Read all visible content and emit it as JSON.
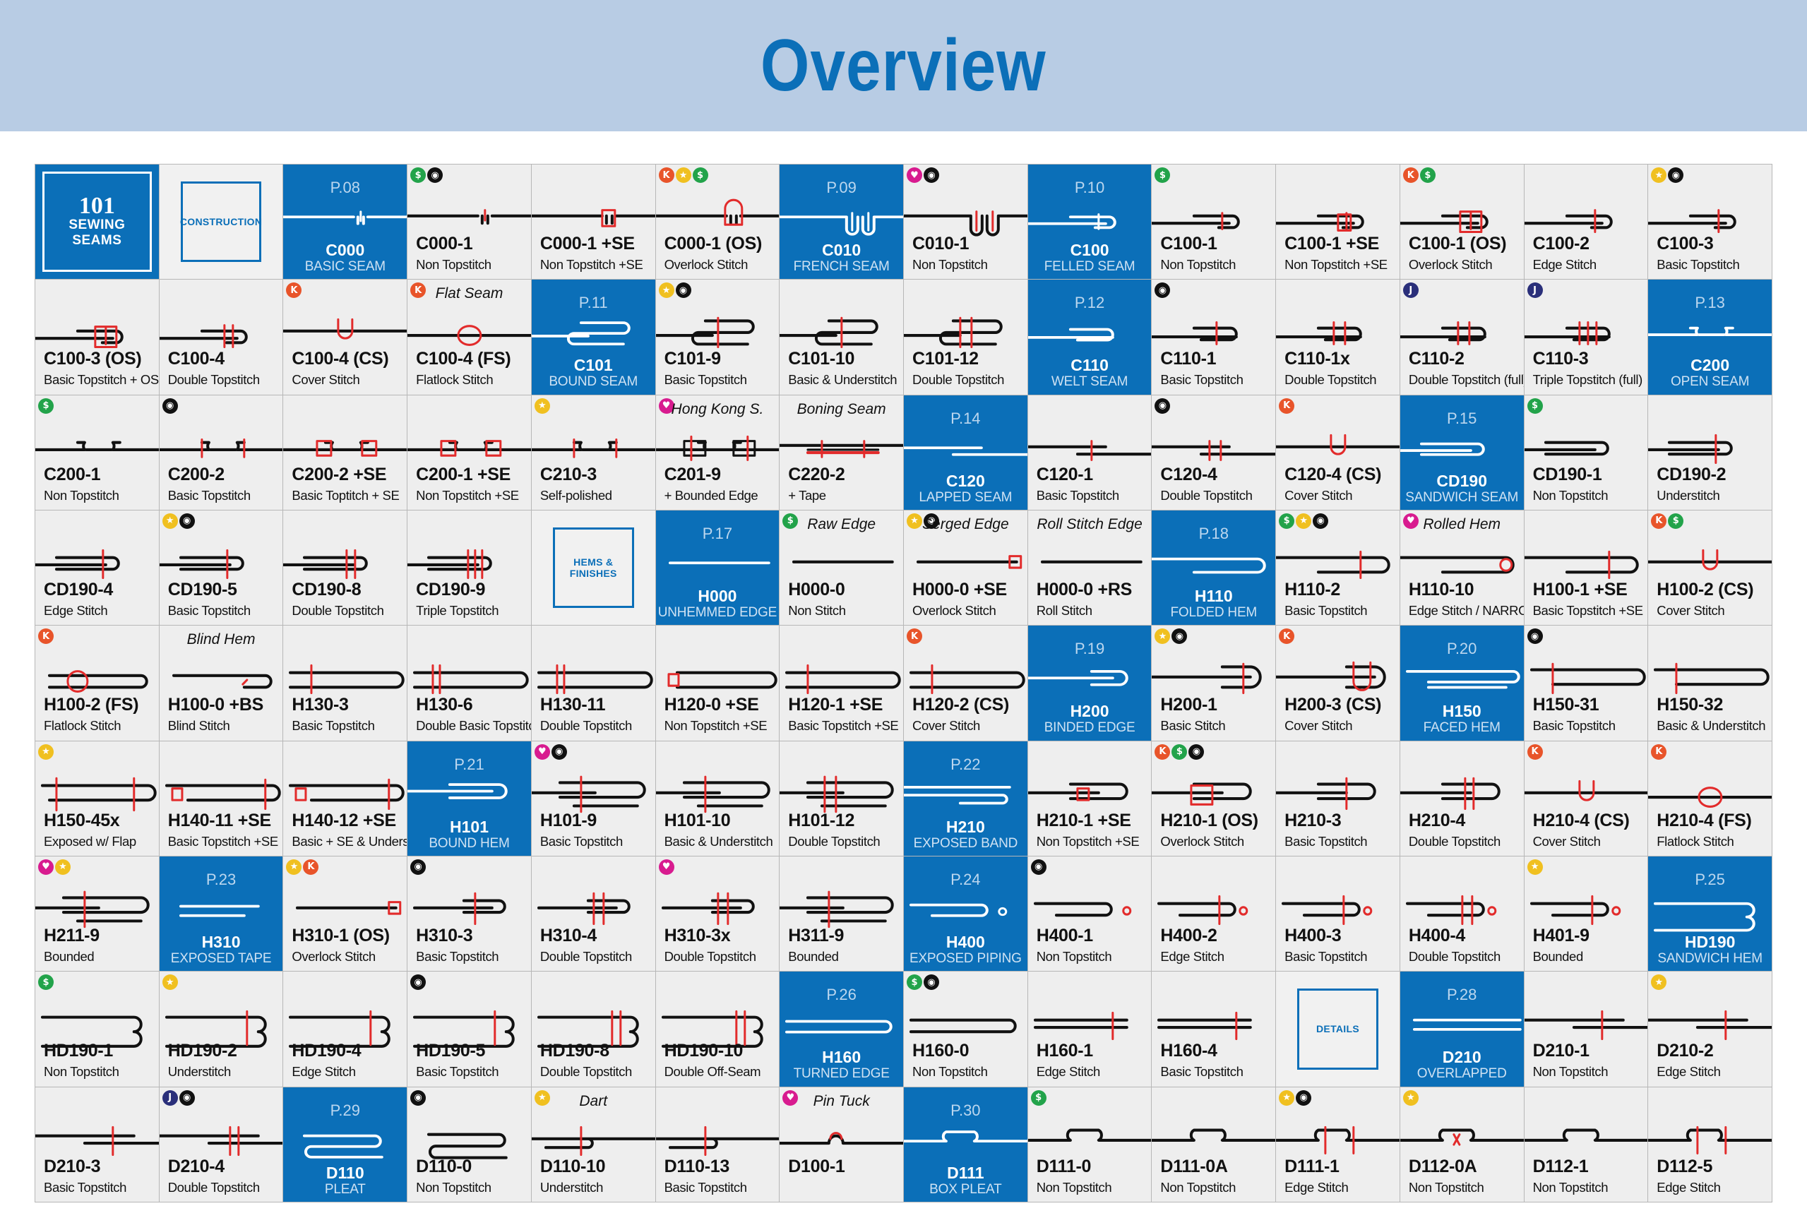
{
  "header": {
    "title": "Overview"
  },
  "logo": {
    "line1": "101",
    "line2": "SEWING",
    "line3": "SEAMS"
  },
  "colors": {
    "banner": "#b8cce4",
    "accent": "#0b6fb8",
    "cell": "#eeeeee",
    "stitch": "#e22b2b",
    "fabric": "#111111"
  },
  "cells": [
    {
      "type": "logo"
    },
    {
      "type": "label",
      "text": "CONSTRUCTION"
    },
    {
      "type": "sec",
      "page": "P.08",
      "code": "C000",
      "sub": "BASIC SEAM",
      "k": "plain"
    },
    {
      "type": "seam",
      "code": "C000-1",
      "desc": "Non Topstitch",
      "badges": [
        "dollar",
        "camera"
      ],
      "k": "plain"
    },
    {
      "type": "seam",
      "code": "C000-1 +SE",
      "desc": "Non Topstitch +SE",
      "k": "plain-se"
    },
    {
      "type": "seam",
      "code": "C000-1 (OS)",
      "desc": "Overlock Stitch",
      "badges": [
        "k",
        "star",
        "dollar"
      ],
      "k": "plain-os"
    },
    {
      "type": "sec",
      "page": "P.09",
      "code": "C010",
      "sub": "FRENCH SEAM",
      "k": "french"
    },
    {
      "type": "seam",
      "code": "C010-1",
      "desc": "Non Topstitch",
      "badges": [
        "heart",
        "camera"
      ],
      "k": "french"
    },
    {
      "type": "sec",
      "page": "P.10",
      "code": "C100",
      "sub": "FELLED SEAM",
      "k": "felled"
    },
    {
      "type": "seam",
      "code": "C100-1",
      "desc": "Non Topstitch",
      "badges": [
        "dollar"
      ],
      "k": "felled"
    },
    {
      "type": "seam",
      "code": "C100-1 +SE",
      "desc": "Non Topstitch +SE",
      "k": "felled-se"
    },
    {
      "type": "seam",
      "code": "C100-1 (OS)",
      "desc": "Overlock Stitch",
      "badges": [
        "k",
        "dollar"
      ],
      "k": "felled-os"
    },
    {
      "type": "seam",
      "code": "C100-2",
      "desc": "Edge Stitch",
      "k": "felled-1"
    },
    {
      "type": "seam",
      "code": "C100-3",
      "desc": "Basic Topstitch",
      "badges": [
        "star",
        "camera"
      ],
      "k": "felled-1"
    },
    {
      "type": "seam",
      "code": "C100-3 (OS)",
      "desc": "Basic Topstitch + OS",
      "k": "felled-os"
    },
    {
      "type": "seam",
      "code": "C100-4",
      "desc": "Double Topstitch",
      "k": "felled-2"
    },
    {
      "type": "seam",
      "code": "C100-4 (CS)",
      "desc": "Cover Stitch",
      "badges": [
        "k"
      ],
      "k": "cover"
    },
    {
      "type": "seam",
      "code": "C100-4 (FS)",
      "desc": "Flatlock Stitch",
      "badges": [
        "k"
      ],
      "note": "Flat Seam",
      "k": "flat"
    },
    {
      "type": "sec",
      "page": "P.11",
      "code": "C101",
      "sub": "BOUND SEAM",
      "k": "bound"
    },
    {
      "type": "seam",
      "code": "C101-9",
      "desc": "Basic Topstitch",
      "badges": [
        "star",
        "camera"
      ],
      "k": "bound-1"
    },
    {
      "type": "seam",
      "code": "C101-10",
      "desc": "Basic & Understitch",
      "k": "bound-1"
    },
    {
      "type": "seam",
      "code": "C101-12",
      "desc": "Double Topstitch",
      "k": "bound-2"
    },
    {
      "type": "sec",
      "page": "P.12",
      "code": "C110",
      "sub": "WELT SEAM",
      "k": "welt"
    },
    {
      "type": "seam",
      "code": "C110-1",
      "desc": "Basic Topstitch",
      "badges": [
        "camera"
      ],
      "k": "welt-1"
    },
    {
      "type": "seam",
      "code": "C110-1x",
      "desc": "Double Topstitch",
      "k": "welt-2"
    },
    {
      "type": "seam",
      "code": "C110-2",
      "desc": "Double Topstitch (full)",
      "badges": [
        "j"
      ],
      "k": "welt-2"
    },
    {
      "type": "seam",
      "code": "C110-3",
      "desc": "Triple Topstitch (full)",
      "badges": [
        "j"
      ],
      "k": "welt-3"
    },
    {
      "type": "sec",
      "page": "P.13",
      "code": "C200",
      "sub": "OPEN SEAM",
      "k": "open"
    },
    {
      "type": "seam",
      "code": "C200-1",
      "desc": "Non Topstitch",
      "badges": [
        "dollar"
      ],
      "k": "open"
    },
    {
      "type": "seam",
      "code": "C200-2",
      "desc": "Basic Topstitch",
      "badges": [
        "camera"
      ],
      "k": "open-2"
    },
    {
      "type": "seam",
      "code": "C200-2 +SE",
      "desc": "Basic Toptitch + SE",
      "k": "open-se"
    },
    {
      "type": "seam",
      "code": "C200-1 +SE",
      "desc": "Non Topstitch +SE",
      "k": "open-se"
    },
    {
      "type": "seam",
      "code": "C210-3",
      "desc": "Self-polished",
      "badges": [
        "star"
      ],
      "k": "open-2"
    },
    {
      "type": "seam",
      "code": "C201-9",
      "desc": "+ Bounded Edge",
      "badges": [
        "heart"
      ],
      "note": "Hong Kong S.",
      "k": "open-bound"
    },
    {
      "type": "seam",
      "code": "C220-2",
      "desc": "+ Tape",
      "note": "Boning Seam",
      "k": "tape"
    },
    {
      "type": "sec",
      "page": "P.14",
      "code": "C120",
      "sub": "LAPPED SEAM",
      "k": "lapped"
    },
    {
      "type": "seam",
      "code": "C120-1",
      "desc": "Basic Topstitch",
      "k": "lapped-1"
    },
    {
      "type": "seam",
      "code": "C120-4",
      "desc": "Double Topstitch",
      "badges": [
        "camera"
      ],
      "k": "lapped-2"
    },
    {
      "type": "seam",
      "code": "C120-4 (CS)",
      "desc": "Cover Stitch",
      "badges": [
        "k"
      ],
      "k": "cover"
    },
    {
      "type": "sec",
      "page": "P.15",
      "code": "CD190",
      "sub": "SANDWICH SEAM",
      "k": "sandwich"
    },
    {
      "type": "seam",
      "code": "CD190-1",
      "desc": "Non Topstitch",
      "badges": [
        "dollar"
      ],
      "k": "sandwich"
    },
    {
      "type": "seam",
      "code": "CD190-2",
      "desc": "Understitch",
      "k": "sandwich-1"
    },
    {
      "type": "seam",
      "code": "CD190-4",
      "desc": "Edge Stitch",
      "k": "sandwich-1"
    },
    {
      "type": "seam",
      "code": "CD190-5",
      "desc": "Basic Topstitch",
      "badges": [
        "star",
        "camera"
      ],
      "k": "sandwich-1"
    },
    {
      "type": "seam",
      "code": "CD190-8",
      "desc": "Double Topstitch",
      "k": "sandwich-2"
    },
    {
      "type": "seam",
      "code": "CD190-9",
      "desc": "Triple Topstitch",
      "k": "sandwich-3"
    },
    {
      "type": "label",
      "text": "HEMS & FINISHES"
    },
    {
      "type": "sec",
      "page": "P.17",
      "code": "H000",
      "sub": "UNHEMMED EDGE",
      "k": "raw"
    },
    {
      "type": "seam",
      "code": "H000-0",
      "desc": "Non Stitch",
      "badges": [
        "dollar"
      ],
      "note": "Raw Edge",
      "k": "raw"
    },
    {
      "type": "seam",
      "code": "H000-0 +SE",
      "desc": "Overlock Stitch",
      "badges": [
        "star",
        "camera"
      ],
      "note": "Serged Edge",
      "k": "raw-se"
    },
    {
      "type": "seam",
      "code": "H000-0 +RS",
      "desc": "Roll Stitch",
      "note": "Roll Stitch Edge",
      "k": "raw"
    },
    {
      "type": "sec",
      "page": "P.18",
      "code": "H110",
      "sub": "FOLDED HEM",
      "k": "hem"
    },
    {
      "type": "seam",
      "code": "H110-2",
      "desc": "Basic Topstitch",
      "badges": [
        "dollar",
        "star",
        "camera"
      ],
      "k": "hem-1"
    },
    {
      "type": "seam",
      "code": "H110-10",
      "desc": "Edge Stitch / NARROW",
      "badges": [
        "heart"
      ],
      "note": "Rolled Hem",
      "k": "hem-roll"
    },
    {
      "type": "seam",
      "code": "H100-1 +SE",
      "desc": "Basic Topstitch +SE",
      "k": "hem-1"
    },
    {
      "type": "seam",
      "code": "H100-2 (CS)",
      "desc": "Cover Stitch",
      "badges": [
        "k",
        "dollar"
      ],
      "k": "cover"
    },
    {
      "type": "seam",
      "code": "H100-2 (FS)",
      "desc": "Flatlock Stitch",
      "badges": [
        "k"
      ],
      "k": "hem-flat"
    },
    {
      "type": "seam",
      "code": "H100-0 +BS",
      "desc": "Blind Stitch",
      "note": "Blind Hem",
      "k": "hem-blind"
    },
    {
      "type": "seam",
      "code": "H130-3",
      "desc": "Basic Topstitch",
      "k": "hem-long"
    },
    {
      "type": "seam",
      "code": "H130-6",
      "desc": "Double Basic Topstitch",
      "k": "hem-long2"
    },
    {
      "type": "seam",
      "code": "H130-11",
      "desc": "Double Topstitch",
      "k": "hem-long2"
    },
    {
      "type": "seam",
      "code": "H120-0 +SE",
      "desc": "Non Topstitch +SE",
      "k": "hem-long-se"
    },
    {
      "type": "seam",
      "code": "H120-1 +SE",
      "desc": "Basic Topstitch +SE",
      "k": "hem-long"
    },
    {
      "type": "seam",
      "code": "H120-2 (CS)",
      "desc": "Cover Stitch",
      "badges": [
        "k"
      ],
      "k": "hem-long"
    },
    {
      "type": "sec",
      "page": "P.19",
      "code": "H200",
      "sub": "BINDED EDGE",
      "k": "binded"
    },
    {
      "type": "seam",
      "code": "H200-1",
      "desc": "Basic Stitch",
      "badges": [
        "star",
        "camera"
      ],
      "k": "binded-1"
    },
    {
      "type": "seam",
      "code": "H200-3 (CS)",
      "desc": "Cover Stitch",
      "badges": [
        "k"
      ],
      "k": "binded-2"
    },
    {
      "type": "sec",
      "page": "P.20",
      "code": "H150",
      "sub": "FACED HEM",
      "k": "faced"
    },
    {
      "type": "seam",
      "code": "H150-31",
      "desc": "Basic Topstitch",
      "badges": [
        "camera"
      ],
      "k": "faced-1"
    },
    {
      "type": "seam",
      "code": "H150-32",
      "desc": "Basic & Understitch",
      "k": "faced-1"
    },
    {
      "type": "seam",
      "code": "H150-45x",
      "desc": "Exposed w/ Flap",
      "badges": [
        "star"
      ],
      "k": "faced-2"
    },
    {
      "type": "seam",
      "code": "H140-11 +SE",
      "desc": "Basic Topstitch +SE",
      "k": "faced-se"
    },
    {
      "type": "seam",
      "code": "H140-12 +SE",
      "desc": "Basic + SE & Underst.",
      "k": "faced-se"
    },
    {
      "type": "sec",
      "page": "P.21",
      "code": "H101",
      "sub": "BOUND HEM",
      "k": "boundhem"
    },
    {
      "type": "seam",
      "code": "H101-9",
      "desc": "Basic Topstitch",
      "badges": [
        "heart",
        "camera"
      ],
      "k": "boundhem-1"
    },
    {
      "type": "seam",
      "code": "H101-10",
      "desc": "Basic & Understitch",
      "k": "boundhem-1"
    },
    {
      "type": "seam",
      "code": "H101-12",
      "desc": "Double Topstitch",
      "k": "boundhem-2"
    },
    {
      "type": "sec",
      "page": "P.22",
      "code": "H210",
      "sub": "EXPOSED BAND",
      "k": "band"
    },
    {
      "type": "seam",
      "code": "H210-1 +SE",
      "desc": "Non Topstitch +SE",
      "k": "band-se"
    },
    {
      "type": "seam",
      "code": "H210-1 (OS)",
      "desc": "Overlock Stitch",
      "badges": [
        "k",
        "dollar",
        "camera"
      ],
      "k": "band-os"
    },
    {
      "type": "seam",
      "code": "H210-3",
      "desc": "Basic Topstitch",
      "k": "band-1"
    },
    {
      "type": "seam",
      "code": "H210-4",
      "desc": "Double Topstitch",
      "k": "band-2"
    },
    {
      "type": "seam",
      "code": "H210-4 (CS)",
      "desc": "Cover Stitch",
      "badges": [
        "k"
      ],
      "k": "cover"
    },
    {
      "type": "seam",
      "code": "H210-4 (FS)",
      "desc": "Flatlock Stitch",
      "badges": [
        "k"
      ],
      "k": "flat"
    },
    {
      "type": "seam",
      "code": "H211-9",
      "desc": "Bounded",
      "badges": [
        "heart",
        "star"
      ],
      "k": "boundhem-1"
    },
    {
      "type": "sec",
      "page": "P.23",
      "code": "H310",
      "sub": "EXPOSED TAPE",
      "k": "tapehem"
    },
    {
      "type": "seam",
      "code": "H310-1 (OS)",
      "desc": "Overlock Stitch",
      "badges": [
        "star",
        "k"
      ],
      "k": "raw-se"
    },
    {
      "type": "seam",
      "code": "H310-3",
      "desc": "Basic Topstitch",
      "badges": [
        "camera"
      ],
      "k": "tapehem-1"
    },
    {
      "type": "seam",
      "code": "H310-4",
      "desc": "Double Topstitch",
      "k": "tapehem-2"
    },
    {
      "type": "seam",
      "code": "H310-3x",
      "desc": "Double Topstitch",
      "badges": [
        "heart"
      ],
      "k": "tapehem-2"
    },
    {
      "type": "seam",
      "code": "H311-9",
      "desc": "Bounded",
      "k": "boundhem-1"
    },
    {
      "type": "sec",
      "page": "P.24",
      "code": "H400",
      "sub": "EXPOSED PIPING",
      "k": "piping"
    },
    {
      "type": "seam",
      "code": "H400-1",
      "desc": "Non Topstitch",
      "badges": [
        "camera"
      ],
      "k": "piping"
    },
    {
      "type": "seam",
      "code": "H400-2",
      "desc": "Edge Stitch",
      "k": "piping-1"
    },
    {
      "type": "seam",
      "code": "H400-3",
      "desc": "Basic Topstitch",
      "k": "piping-1"
    },
    {
      "type": "seam",
      "code": "H400-4",
      "desc": "Double Topstitch",
      "k": "piping-2"
    },
    {
      "type": "seam",
      "code": "H401-9",
      "desc": "Bounded",
      "badges": [
        "star"
      ],
      "k": "piping-1"
    },
    {
      "type": "sec",
      "page": "P.25",
      "code": "HD190",
      "sub": "SANDWICH HEM",
      "k": "sandhem"
    },
    {
      "type": "seam",
      "code": "HD190-1",
      "desc": "Non Topstitch",
      "badges": [
        "dollar"
      ],
      "k": "sandhem"
    },
    {
      "type": "seam",
      "code": "HD190-2",
      "desc": "Understitch",
      "badges": [
        "star"
      ],
      "k": "sandhem-1"
    },
    {
      "type": "seam",
      "code": "HD190-4",
      "desc": "Edge Stitch",
      "k": "sandhem-1"
    },
    {
      "type": "seam",
      "code": "HD190-5",
      "desc": "Basic Topstitch",
      "badges": [
        "camera"
      ],
      "k": "sandhem-1"
    },
    {
      "type": "seam",
      "code": "HD190-8",
      "desc": "Double Topstitch",
      "k": "sandhem-2"
    },
    {
      "type": "seam",
      "code": "HD190-10",
      "desc": "Double Off-Seam",
      "k": "sandhem-2"
    },
    {
      "type": "sec",
      "page": "P.26",
      "code": "H160",
      "sub": "TURNED EDGE",
      "k": "turned"
    },
    {
      "type": "seam",
      "code": "H160-0",
      "desc": "Non Topstitch",
      "badges": [
        "dollar",
        "camera"
      ],
      "k": "turned"
    },
    {
      "type": "seam",
      "code": "H160-1",
      "desc": "Edge Stitch",
      "k": "turned-1"
    },
    {
      "type": "seam",
      "code": "H160-4",
      "desc": "Basic Topstitch",
      "k": "turned-1"
    },
    {
      "type": "label",
      "text": "DETAILS"
    },
    {
      "type": "sec",
      "page": "P.28",
      "code": "D210",
      "sub": "OVERLAPPED",
      "k": "overlap"
    },
    {
      "type": "seam",
      "code": "D210-1",
      "desc": "Non Topstitch",
      "k": "overlap-1"
    },
    {
      "type": "seam",
      "code": "D210-2",
      "desc": "Edge Stitch",
      "badges": [
        "star"
      ],
      "k": "overlap-1"
    },
    {
      "type": "seam",
      "code": "D210-3",
      "desc": "Basic Topstitch",
      "k": "overlap-1"
    },
    {
      "type": "seam",
      "code": "D210-4",
      "desc": "Double Topstitch",
      "badges": [
        "j",
        "camera"
      ],
      "k": "overlap-2"
    },
    {
      "type": "sec",
      "page": "P.29",
      "code": "D110",
      "sub": "PLEAT",
      "k": "pleat"
    },
    {
      "type": "seam",
      "code": "D110-0",
      "desc": "Non Topstitch",
      "badges": [
        "camera"
      ],
      "k": "pleat"
    },
    {
      "type": "seam",
      "code": "D110-10",
      "desc": "Understitch",
      "badges": [
        "star"
      ],
      "note": "Dart",
      "k": "pleat-1"
    },
    {
      "type": "seam",
      "code": "D110-13",
      "desc": "Basic Topstitch",
      "k": "pleat-1"
    },
    {
      "type": "seam",
      "code": "D100-1",
      "desc": "",
      "badges": [
        "heart"
      ],
      "note": "Pin Tuck",
      "k": "tuck"
    },
    {
      "type": "sec",
      "page": "P.30",
      "code": "D111",
      "sub": "BOX PLEAT",
      "k": "box"
    },
    {
      "type": "seam",
      "code": "D111-0",
      "desc": "Non Topstitch",
      "badges": [
        "dollar"
      ],
      "k": "box"
    },
    {
      "type": "seam",
      "code": "D111-0A",
      "desc": "Non Topstitch",
      "k": "box"
    },
    {
      "type": "seam",
      "code": "D111-1",
      "desc": "Edge Stitch",
      "badges": [
        "star",
        "camera"
      ],
      "k": "box-1"
    },
    {
      "type": "seam",
      "code": "D112-0A",
      "desc": "Non Topstitch",
      "badges": [
        "star"
      ],
      "k": "box-x"
    },
    {
      "type": "seam",
      "code": "D112-1",
      "desc": "Non Topstitch",
      "k": "box"
    },
    {
      "type": "seam",
      "code": "D112-5",
      "desc": "Edge Stitch",
      "k": "box-1"
    }
  ]
}
